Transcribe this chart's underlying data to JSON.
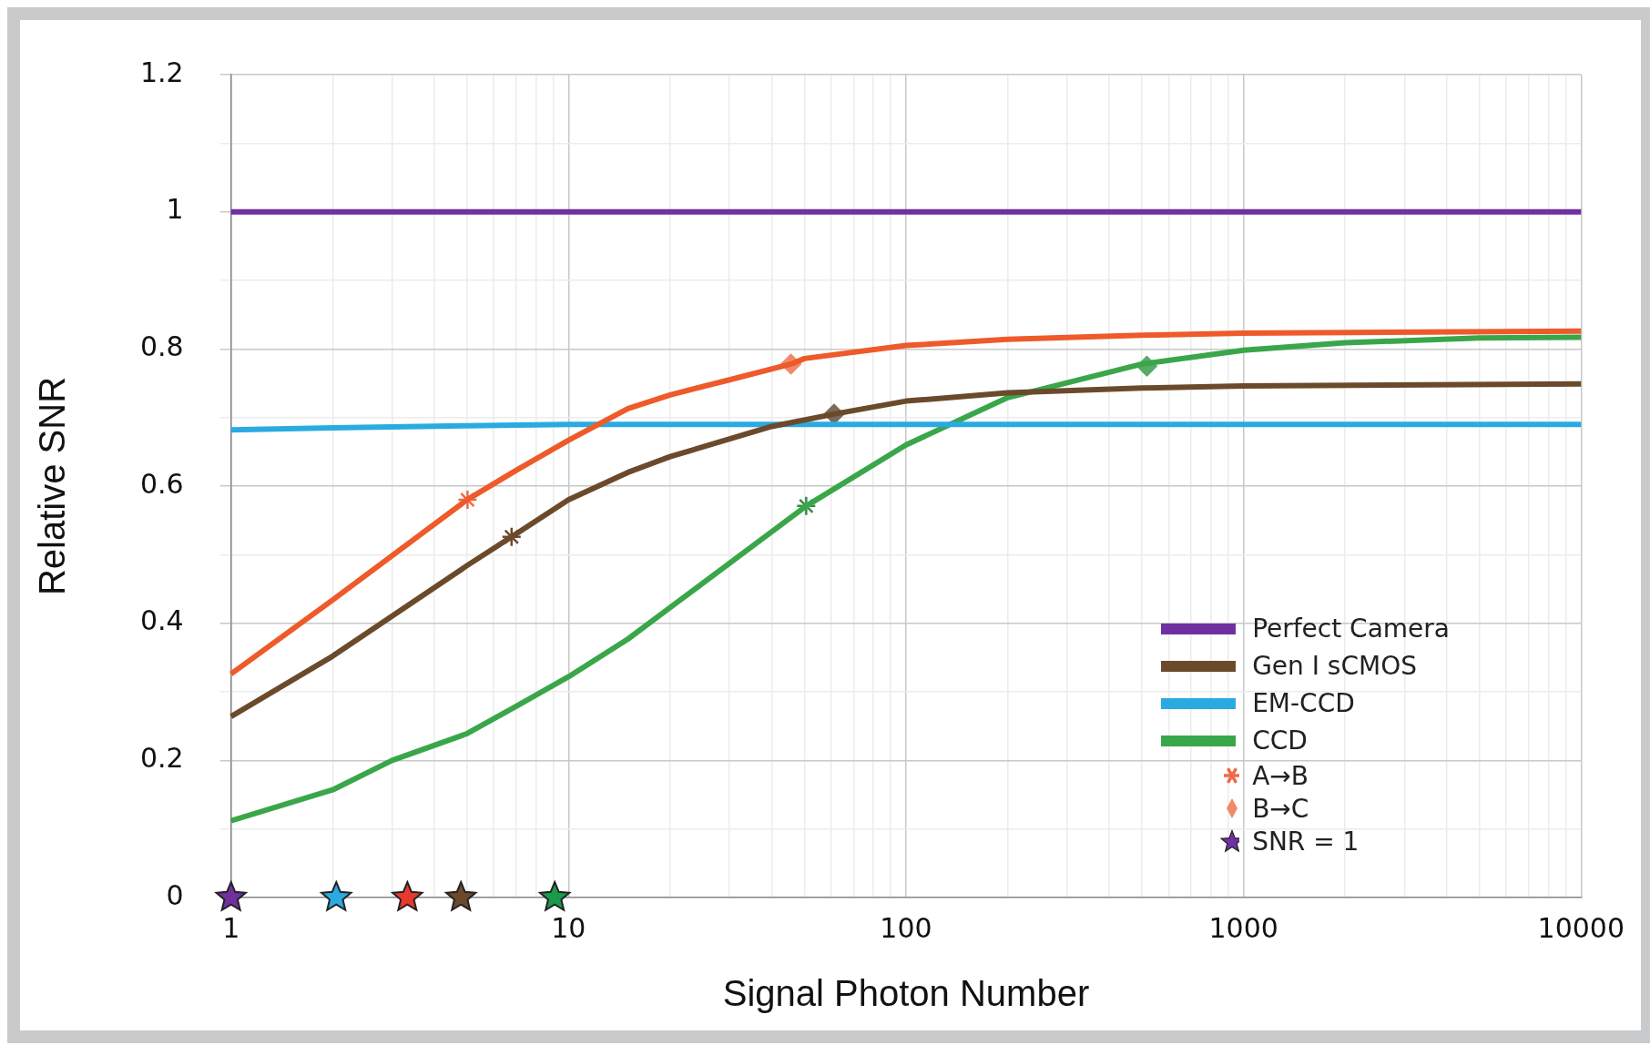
{
  "chart_data": {
    "type": "line",
    "xlabel": "Signal Photon Number",
    "ylabel": "Relative SNR",
    "log": "x",
    "grid": true,
    "legend": "bottom right",
    "marker": "none",
    "line_style": "solid",
    "xlim": [
      1,
      10000
    ],
    "xticks": [
      1,
      {
        "value": 2,
        "label": null
      },
      {
        "value": 3,
        "label": null
      },
      {
        "value": 4,
        "label": null
      },
      {
        "value": 5,
        "label": null
      },
      {
        "value": 6,
        "label": null
      },
      {
        "value": 7,
        "label": null
      },
      {
        "value": 8,
        "label": null
      },
      {
        "value": 9,
        "label": null
      },
      10,
      {
        "value": 20,
        "label": null
      },
      {
        "value": 30,
        "label": null
      },
      {
        "value": 40,
        "label": null
      },
      {
        "value": 50,
        "label": null
      },
      {
        "value": 60,
        "label": null
      },
      {
        "value": 70,
        "label": null
      },
      {
        "value": 80,
        "label": null
      },
      {
        "value": 90,
        "label": null
      },
      100,
      {
        "value": 200,
        "label": null
      },
      {
        "value": 300,
        "label": null
      },
      {
        "value": 400,
        "label": null
      },
      {
        "value": 500,
        "label": null
      },
      {
        "value": 600,
        "label": null
      },
      {
        "value": 700,
        "label": null
      },
      {
        "value": 800,
        "label": null
      },
      {
        "value": 900,
        "label": null
      },
      1000,
      {
        "value": 2000,
        "label": null
      },
      {
        "value": 3000,
        "label": null
      },
      {
        "value": 4000,
        "label": null
      },
      {
        "value": 5000,
        "label": null
      },
      {
        "value": 6000,
        "label": null
      },
      {
        "value": 7000,
        "label": null
      },
      {
        "value": 8000,
        "label": null
      },
      {
        "value": 9000,
        "label": null
      },
      10000
    ],
    "ylim": [
      0,
      1.2
    ],
    "yticks": [
      0,
      {
        "value": 0.1,
        "label": null
      },
      0.2,
      {
        "value": 0.3,
        "label": null
      },
      0.4,
      {
        "value": 0.5,
        "label": null
      },
      0.6,
      {
        "value": 0.7,
        "label": null
      },
      0.8,
      {
        "value": 0.9,
        "label": null
      },
      1,
      {
        "value": 1.1,
        "label": null
      },
      1.2
    ],
    "series": [
      {
        "name": "Perfect Camera",
        "color": "#7030a0",
        "x": [
          1,
          10000
        ],
        "values": [
          1,
          1
        ]
      },
      {
        "color": "#ee5a2a",
        "x": [
          1,
          2,
          5,
          7,
          10,
          15,
          20,
          30,
          45.6,
          50,
          100,
          200,
          500,
          1000,
          10000
        ],
        "values": [
          0.326,
          0.434,
          0.58,
          0.623,
          0.667,
          0.713,
          0.733,
          0.755,
          0.778,
          0.786,
          0.805,
          0.814,
          0.82,
          0.823,
          0.826
        ]
      },
      {
        "name": "Gen I sCMOS",
        "color": "#6b4a2b",
        "x": [
          1,
          2,
          5,
          6.78,
          10,
          15,
          20,
          40,
          61.2,
          100,
          200,
          500,
          1000,
          10000
        ],
        "values": [
          0.264,
          0.352,
          0.484,
          0.526,
          0.58,
          0.62,
          0.643,
          0.687,
          0.705,
          0.724,
          0.736,
          0.743,
          0.746,
          0.749
        ]
      },
      {
        "name": "EM-CCD",
        "color": "#29abe2",
        "x": [
          1,
          2,
          5,
          10,
          100,
          10000
        ],
        "values": [
          0.682,
          0.685,
          0.688,
          0.69,
          0.69,
          0.69
        ]
      },
      {
        "name": "CCD",
        "color": "#3aa64a",
        "x": [
          1,
          2,
          3,
          5,
          7,
          10,
          15,
          20,
          50.6,
          100,
          200,
          500,
          1000,
          2000,
          5000,
          10000
        ],
        "values": [
          0.112,
          0.157,
          0.2,
          0.239,
          0.279,
          0.322,
          0.377,
          0.423,
          0.571,
          0.66,
          0.729,
          0.778,
          0.798,
          0.809,
          0.816,
          0.817
        ]
      },
      {
        "name": "A→B",
        "type": "scatter",
        "marker": "cross",
        "x": [
          5.02,
          6.78,
          50.6
        ],
        "values": [
          0.58,
          0.526,
          0.571
        ],
        "colors": [
          "#ee6a4a",
          "#6b4a2b",
          "#3a8a4a"
        ]
      },
      {
        "name": "B→C",
        "type": "scatter",
        "marker": "diamond",
        "x": [
          45.6,
          61.2,
          517
        ],
        "values": [
          0.778,
          0.705,
          0.775
        ],
        "colors": [
          "#f08a6a",
          "#7a6a5a",
          "#5aaa6a"
        ]
      },
      {
        "name": "SNR = 1",
        "type": "scatter",
        "marker": "star",
        "x": [
          1,
          2.05,
          3.33,
          4.8,
          9.1
        ],
        "values": [
          0,
          0,
          0,
          0,
          0
        ],
        "colors": [
          "#7030a0",
          "#29abe2",
          "#e8392e",
          "#6b4a2b",
          "#1a9a4a"
        ]
      }
    ]
  }
}
